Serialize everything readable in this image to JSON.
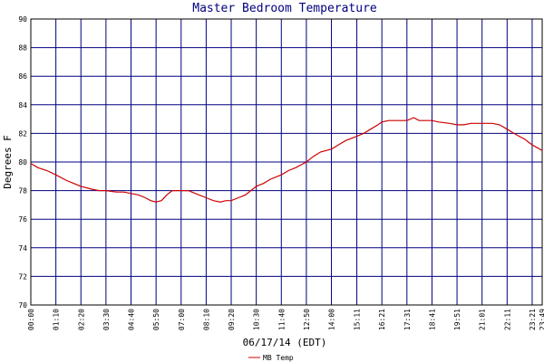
{
  "chart_data": {
    "type": "line",
    "title": "Master Bedroom Temperature",
    "xlabel": "06/17/14 (EDT)",
    "ylabel": "Degrees F",
    "ylim": [
      70,
      90
    ],
    "yticks": [
      70,
      72,
      74,
      76,
      78,
      80,
      82,
      84,
      86,
      88,
      90
    ],
    "xlim": [
      "00:00",
      "23:49"
    ],
    "xtick_labels": [
      "00:00",
      "01:10",
      "02:20",
      "03:30",
      "04:40",
      "05:50",
      "07:00",
      "08:10",
      "09:20",
      "10:30",
      "11:40",
      "12:50",
      "14:00",
      "15:11",
      "16:21",
      "17:31",
      "18:41",
      "19:51",
      "21:01",
      "22:11",
      "23:21",
      "23:49"
    ],
    "grid": true,
    "legend_position": "bottom-center",
    "series": [
      {
        "name": "MB Temp",
        "color": "#cc0000",
        "x": [
          "00:00",
          "00:20",
          "00:45",
          "01:10",
          "01:40",
          "02:00",
          "02:20",
          "02:50",
          "03:10",
          "03:30",
          "04:00",
          "04:20",
          "04:40",
          "05:00",
          "05:20",
          "05:35",
          "05:50",
          "06:05",
          "06:20",
          "06:35",
          "06:50",
          "07:00",
          "07:20",
          "07:40",
          "08:10",
          "08:30",
          "08:50",
          "09:05",
          "09:20",
          "09:40",
          "10:00",
          "10:15",
          "10:30",
          "10:50",
          "11:10",
          "11:40",
          "12:00",
          "12:20",
          "12:50",
          "13:10",
          "13:30",
          "14:00",
          "14:20",
          "14:40",
          "15:11",
          "15:30",
          "15:50",
          "16:10",
          "16:21",
          "16:40",
          "17:00",
          "17:31",
          "17:50",
          "18:05",
          "18:20",
          "18:41",
          "19:00",
          "19:30",
          "19:51",
          "20:10",
          "20:30",
          "20:50",
          "21:01",
          "21:30",
          "21:50",
          "22:11",
          "22:30",
          "22:45",
          "23:00",
          "23:10",
          "23:21",
          "23:35",
          "23:49"
        ],
        "values": [
          79.9,
          79.6,
          79.4,
          79.1,
          78.7,
          78.5,
          78.3,
          78.1,
          78.0,
          78.0,
          77.9,
          77.9,
          77.8,
          77.7,
          77.5,
          77.3,
          77.2,
          77.3,
          77.7,
          78.0,
          78.0,
          78.0,
          78.0,
          77.8,
          77.5,
          77.3,
          77.2,
          77.3,
          77.3,
          77.5,
          77.7,
          78.0,
          78.3,
          78.5,
          78.8,
          79.1,
          79.4,
          79.6,
          80.0,
          80.4,
          80.7,
          80.9,
          81.2,
          81.5,
          81.8,
          82.0,
          82.3,
          82.6,
          82.8,
          82.9,
          82.9,
          82.9,
          83.1,
          82.9,
          82.9,
          82.9,
          82.8,
          82.7,
          82.6,
          82.6,
          82.7,
          82.7,
          82.7,
          82.7,
          82.6,
          82.3,
          82.0,
          81.8,
          81.6,
          81.4,
          81.2,
          81.0,
          80.8
        ]
      }
    ]
  }
}
